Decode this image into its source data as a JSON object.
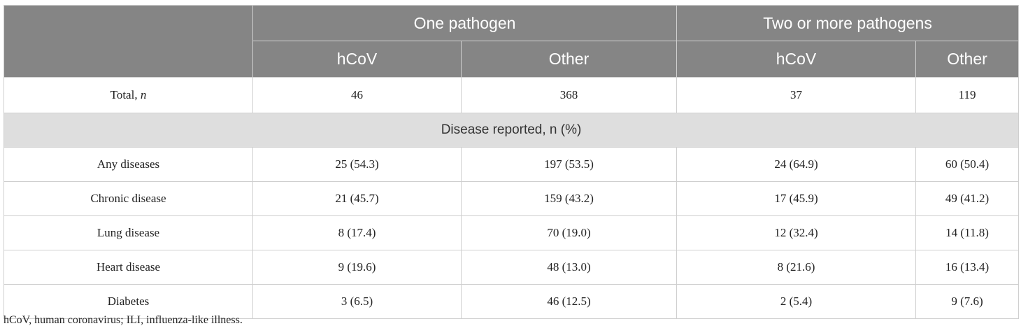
{
  "table": {
    "group_headers": [
      "One pathogen",
      "Two or more pathogens"
    ],
    "sub_headers": [
      "hCoV",
      "Other",
      "hCoV",
      "Other"
    ],
    "total_row": {
      "label": "Total, ",
      "label_italic": "n",
      "values": [
        "46",
        "368",
        "37",
        "119"
      ]
    },
    "section_label": "Disease reported, n (%)",
    "rows": [
      {
        "label": "Any diseases",
        "values": [
          "25 (54.3)",
          "197 (53.5)",
          "24 (64.9)",
          "60 (50.4)"
        ]
      },
      {
        "label": "Chronic disease",
        "values": [
          "21 (45.7)",
          "159 (43.2)",
          "17 (45.9)",
          "49 (41.2)"
        ]
      },
      {
        "label": "Lung disease",
        "values": [
          "8 (17.4)",
          "70 (19.0)",
          "12 (32.4)",
          "14 (11.8)"
        ]
      },
      {
        "label": "Heart disease",
        "values": [
          "9 (19.6)",
          "48 (13.0)",
          "8 (21.6)",
          "16 (13.4)"
        ]
      },
      {
        "label": "Diabetes",
        "values": [
          "3 (6.5)",
          "46 (12.5)",
          "2 (5.4)",
          "9 (7.6)"
        ]
      }
    ]
  },
  "footnote": "hCoV, human coronavirus; ILI, influenza-like illness."
}
